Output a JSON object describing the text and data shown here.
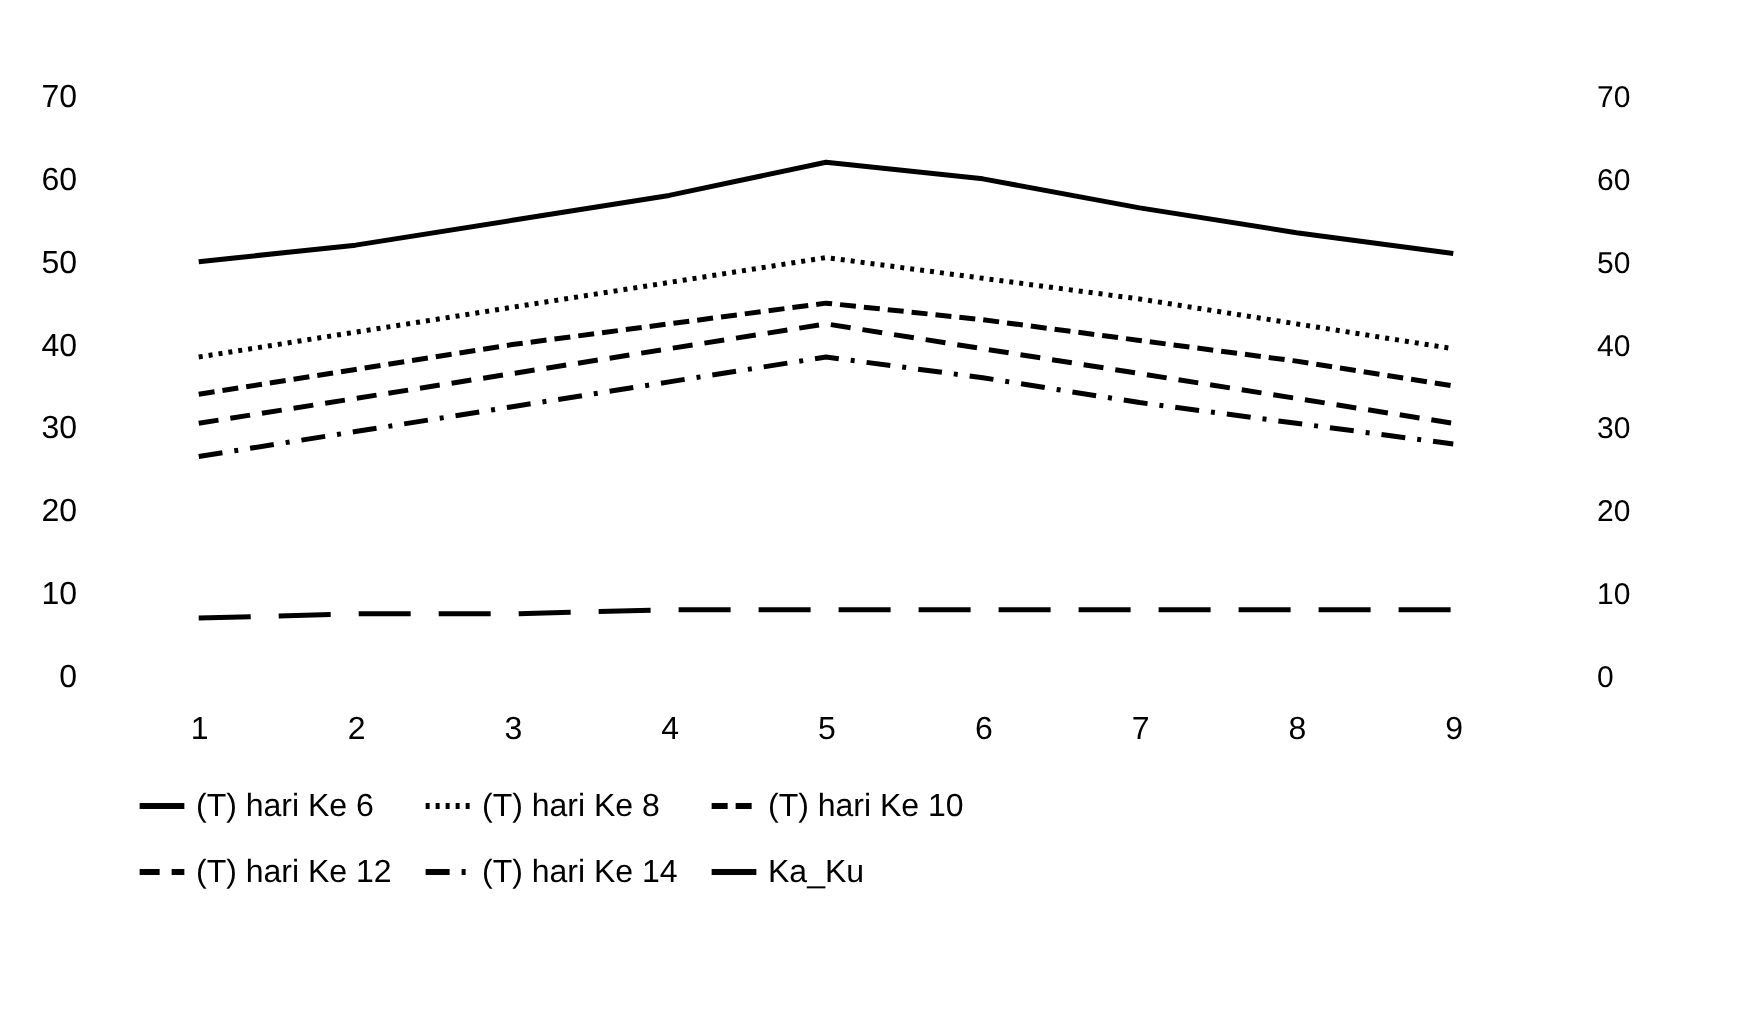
{
  "chart_data": {
    "type": "line",
    "categories": [
      "1",
      "2",
      "3",
      "4",
      "5",
      "6",
      "7",
      "8",
      "9"
    ],
    "series": [
      {
        "name": "(T) hari Ke 6",
        "color": "#000000",
        "line_style": "solid",
        "values": [
          50,
          52,
          55,
          58,
          62,
          60,
          56.5,
          53.5,
          51
        ]
      },
      {
        "name": "(T) hari Ke 8",
        "color": "#000000",
        "line_style": "dotted",
        "values": [
          38.5,
          41.5,
          44.5,
          47.5,
          50.5,
          48,
          45.5,
          42.5,
          39.5
        ]
      },
      {
        "name": "(T) hari Ke 10",
        "color": "#000000",
        "line_style": "dashed",
        "values": [
          34,
          37,
          40,
          42.5,
          45,
          43,
          40.5,
          38,
          35
        ]
      },
      {
        "name": "(T) hari Ke 12",
        "color": "#000000",
        "line_style": "longdash",
        "values": [
          30.5,
          33.5,
          36.5,
          39.5,
          42.5,
          39.5,
          36.5,
          33.5,
          30.5
        ]
      },
      {
        "name": "(T) hari Ke 14",
        "color": "#000000",
        "line_style": "dashdot",
        "values": [
          26.5,
          29.5,
          32.5,
          35.5,
          38.5,
          36,
          33,
          30.5,
          28
        ]
      },
      {
        "name": "Ka_Ku",
        "color": "#000000",
        "line_style": "longdashgap",
        "values": [
          7,
          7.5,
          7.5,
          8,
          8,
          8,
          8,
          8,
          8
        ]
      }
    ],
    "ylim": [
      0,
      70
    ],
    "yticks": [
      0,
      10,
      20,
      30,
      40,
      50,
      60,
      70
    ],
    "y2lim": [
      0,
      70
    ],
    "y2ticks": [
      0,
      10,
      20,
      30,
      40,
      50,
      60,
      70
    ],
    "grid": false,
    "legend": "bottom",
    "marker": "none"
  }
}
